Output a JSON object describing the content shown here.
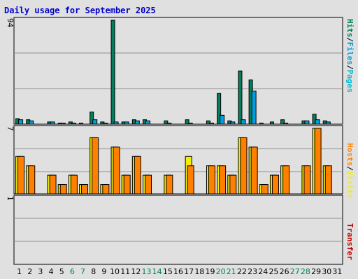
{
  "title": "Daily usage for September 2025",
  "colors": {
    "hits": "#00805c",
    "files": "#00a0e0",
    "pages": "#00bcd4",
    "visits": "#f0f000",
    "hosts": "#ff8000",
    "transfer": "#c00000",
    "weekend": "#00805c",
    "weekday": "#000000",
    "title": "#0000cc"
  },
  "side_labels": {
    "top": [
      "Hits",
      "/",
      "Files",
      "/",
      "Pages"
    ],
    "mid": [
      "Hosts",
      "/",
      "Visits"
    ],
    "bottom": [
      "Transfer"
    ]
  },
  "chart_data": [
    {
      "type": "bar",
      "panel": "hits-files-pages",
      "ymax": 94,
      "ytick_label": "94",
      "x": [
        1,
        2,
        3,
        4,
        5,
        6,
        7,
        8,
        9,
        10,
        11,
        12,
        13,
        14,
        15,
        16,
        17,
        18,
        19,
        20,
        21,
        22,
        23,
        24,
        25,
        26,
        27,
        28,
        29,
        30,
        31
      ],
      "series": [
        {
          "name": "Hits",
          "color": "#00805c",
          "values": [
            5,
            4,
            0,
            2,
            1,
            2,
            1,
            11,
            2,
            94,
            2,
            4,
            4,
            0,
            3,
            0,
            4,
            0,
            3,
            28,
            3,
            48,
            40,
            1,
            2,
            4,
            0,
            3,
            9,
            3,
            0
          ]
        },
        {
          "name": "Files",
          "color": "#00a0e0",
          "values": [
            4,
            3,
            0,
            2,
            1,
            1,
            0,
            4,
            1,
            2,
            2,
            3,
            3,
            0,
            1,
            0,
            1,
            0,
            1,
            8,
            2,
            4,
            30,
            0,
            0,
            1,
            0,
            3,
            4,
            2,
            0
          ]
        },
        {
          "name": "Pages",
          "color": "#00bcd4",
          "values": [
            0,
            0,
            0,
            0,
            0,
            0,
            0,
            0,
            0,
            0,
            0,
            0,
            0,
            0,
            0,
            0,
            0,
            0,
            0,
            0,
            0,
            0,
            0,
            0,
            0,
            0,
            0,
            0,
            0,
            0,
            0
          ]
        }
      ]
    },
    {
      "type": "bar",
      "panel": "visits-hosts",
      "ymax": 7,
      "ytick_label": "7",
      "x": [
        1,
        2,
        3,
        4,
        5,
        6,
        7,
        8,
        9,
        10,
        11,
        12,
        13,
        14,
        15,
        16,
        17,
        18,
        19,
        20,
        21,
        22,
        23,
        24,
        25,
        26,
        27,
        28,
        29,
        30,
        31
      ],
      "series": [
        {
          "name": "Visits",
          "color": "#f0f000",
          "values": [
            4,
            3,
            0,
            2,
            1,
            2,
            1,
            6,
            1,
            5,
            2,
            4,
            2,
            0,
            2,
            0,
            4,
            0,
            3,
            3,
            2,
            6,
            5,
            1,
            2,
            3,
            0,
            3,
            7,
            3,
            0
          ]
        },
        {
          "name": "Hosts",
          "color": "#ff8000",
          "values": [
            4,
            3,
            0,
            2,
            1,
            2,
            1,
            6,
            1,
            5,
            2,
            4,
            2,
            0,
            2,
            0,
            3,
            0,
            3,
            3,
            2,
            6,
            5,
            1,
            2,
            3,
            0,
            3,
            7,
            3,
            0
          ]
        }
      ]
    },
    {
      "type": "bar",
      "panel": "transfer",
      "ymax": 1,
      "ytick_label": "1",
      "x": [
        1,
        2,
        3,
        4,
        5,
        6,
        7,
        8,
        9,
        10,
        11,
        12,
        13,
        14,
        15,
        16,
        17,
        18,
        19,
        20,
        21,
        22,
        23,
        24,
        25,
        26,
        27,
        28,
        29,
        30,
        31
      ],
      "series": [
        {
          "name": "Transfer",
          "color": "#c00000",
          "values": [
            0,
            0,
            0,
            0,
            0,
            0,
            0,
            0,
            0,
            0,
            0,
            0,
            0,
            0,
            0,
            0,
            0,
            0,
            0,
            0,
            0,
            0,
            0,
            0,
            0,
            0,
            0,
            0,
            0,
            0,
            0
          ]
        }
      ]
    }
  ],
  "days": [
    {
      "label": "1",
      "weekend": false
    },
    {
      "label": "2",
      "weekend": false
    },
    {
      "label": "3",
      "weekend": false
    },
    {
      "label": "4",
      "weekend": false
    },
    {
      "label": "5",
      "weekend": false
    },
    {
      "label": "6",
      "weekend": true
    },
    {
      "label": "7",
      "weekend": true
    },
    {
      "label": "8",
      "weekend": false
    },
    {
      "label": "9",
      "weekend": false
    },
    {
      "label": "10",
      "weekend": false
    },
    {
      "label": "11",
      "weekend": false
    },
    {
      "label": "12",
      "weekend": false
    },
    {
      "label": "13",
      "weekend": true
    },
    {
      "label": "14",
      "weekend": true
    },
    {
      "label": "15",
      "weekend": false
    },
    {
      "label": "16",
      "weekend": false
    },
    {
      "label": "17",
      "weekend": false
    },
    {
      "label": "18",
      "weekend": false
    },
    {
      "label": "19",
      "weekend": false
    },
    {
      "label": "20",
      "weekend": true
    },
    {
      "label": "21",
      "weekend": true
    },
    {
      "label": "22",
      "weekend": false
    },
    {
      "label": "23",
      "weekend": false
    },
    {
      "label": "24",
      "weekend": false
    },
    {
      "label": "25",
      "weekend": false
    },
    {
      "label": "26",
      "weekend": false
    },
    {
      "label": "27",
      "weekend": true
    },
    {
      "label": "28",
      "weekend": true
    },
    {
      "label": "29",
      "weekend": false
    },
    {
      "label": "30",
      "weekend": false
    },
    {
      "label": "31",
      "weekend": false
    }
  ]
}
